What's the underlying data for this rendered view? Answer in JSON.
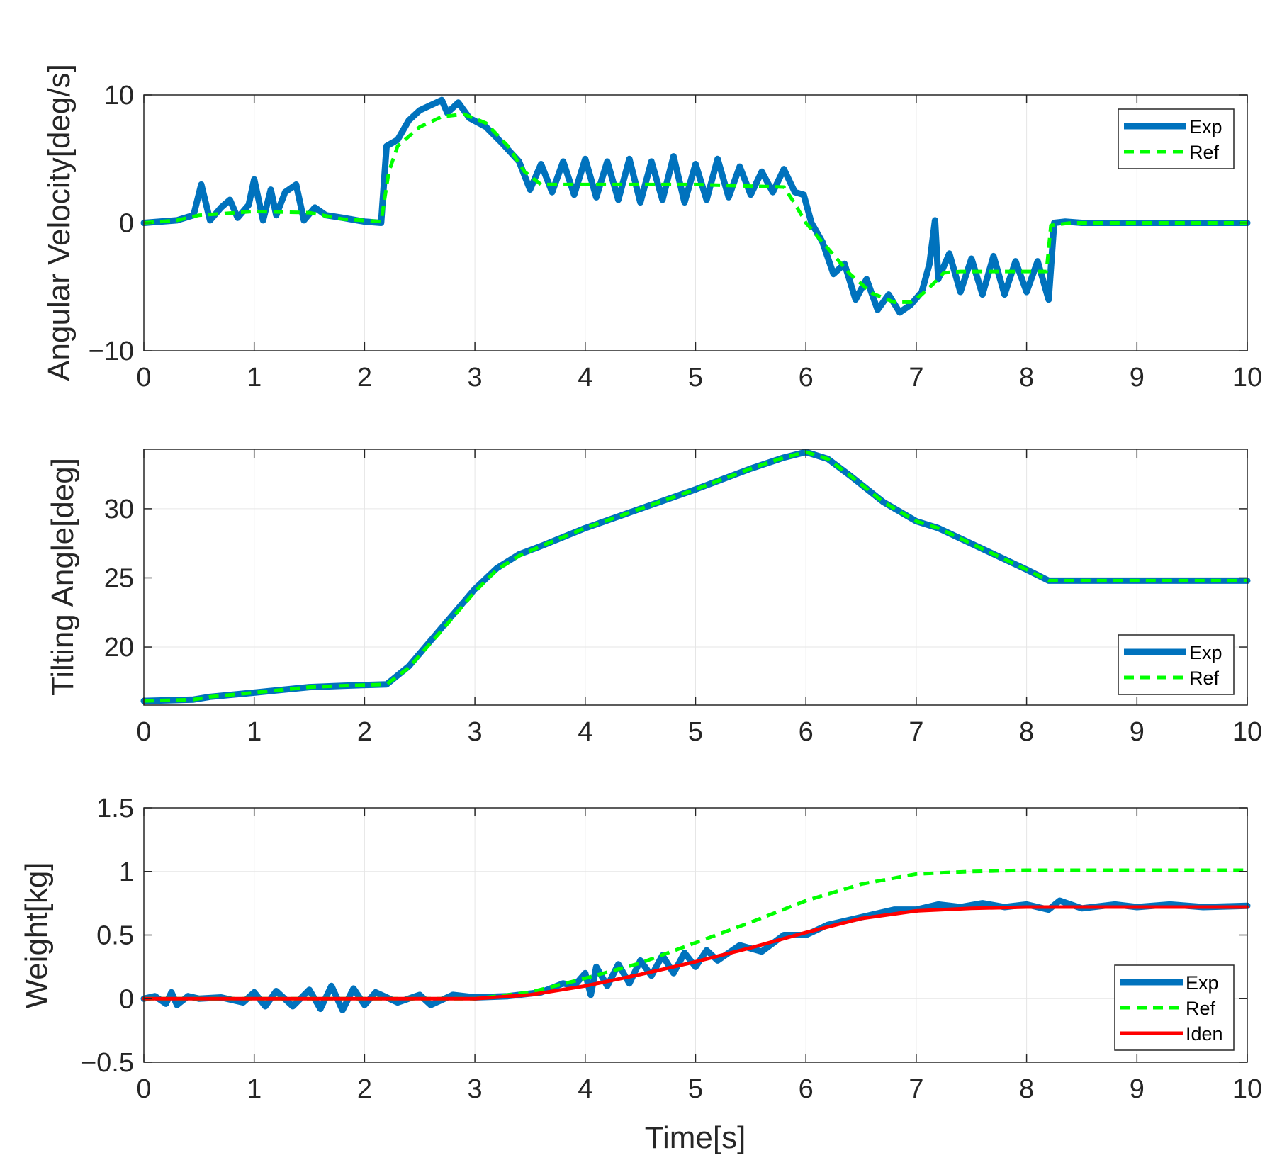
{
  "colors": {
    "exp": "#0072BD",
    "ref": "#00FF00",
    "iden": "#FF0000",
    "axis": "#262626",
    "grid": "#E6E6E6"
  },
  "chart_data": [
    {
      "type": "line",
      "title": "",
      "xlabel": "",
      "ylabel": "Angular Velocity[deg/s]",
      "xlim": [
        0,
        10
      ],
      "ylim": [
        -10,
        10
      ],
      "xticks": [
        0,
        1,
        2,
        3,
        4,
        5,
        6,
        7,
        8,
        9,
        10
      ],
      "yticks": [
        -10,
        0,
        10
      ],
      "ytick_labels": [
        "−10",
        "0",
        "10"
      ],
      "grid": true,
      "legend_position": "top-right",
      "series": [
        {
          "name": "Exp",
          "style": "solid-thick",
          "color": "#0072BD",
          "x": [
            0,
            0.3,
            0.45,
            0.52,
            0.6,
            0.7,
            0.78,
            0.85,
            0.95,
            1.0,
            1.08,
            1.15,
            1.2,
            1.28,
            1.38,
            1.45,
            1.55,
            1.65,
            1.8,
            2.0,
            2.15,
            2.2,
            2.3,
            2.4,
            2.5,
            2.6,
            2.7,
            2.75,
            2.85,
            2.95,
            3.1,
            3.25,
            3.4,
            3.5,
            3.6,
            3.7,
            3.8,
            3.9,
            4.0,
            4.1,
            4.2,
            4.3,
            4.4,
            4.5,
            4.6,
            4.7,
            4.8,
            4.9,
            5.0,
            5.1,
            5.2,
            5.3,
            5.4,
            5.5,
            5.6,
            5.7,
            5.8,
            5.9,
            5.98,
            6.05,
            6.15,
            6.25,
            6.35,
            6.45,
            6.55,
            6.65,
            6.75,
            6.85,
            6.95,
            7.05,
            7.12,
            7.17,
            7.2,
            7.3,
            7.4,
            7.5,
            7.6,
            7.7,
            7.8,
            7.9,
            8.0,
            8.1,
            8.2,
            8.25,
            8.35,
            8.5,
            9.0,
            10.0
          ],
          "y": [
            0,
            0.2,
            0.6,
            3.0,
            0.2,
            1.2,
            1.8,
            0.4,
            1.4,
            3.4,
            0.2,
            2.6,
            0.6,
            2.4,
            3.0,
            0.2,
            1.2,
            0.6,
            0.4,
            0.1,
            0.0,
            6.0,
            6.5,
            8.0,
            8.8,
            9.2,
            9.6,
            8.6,
            9.4,
            8.2,
            7.5,
            6.2,
            4.8,
            2.6,
            4.6,
            2.4,
            4.8,
            2.2,
            5.0,
            2.0,
            4.8,
            1.8,
            5.0,
            1.6,
            4.8,
            1.8,
            5.2,
            1.6,
            4.6,
            1.8,
            5.0,
            2.0,
            4.4,
            2.2,
            4.0,
            2.4,
            4.2,
            2.4,
            2.2,
            0.0,
            -1.5,
            -4.0,
            -3.2,
            -6.0,
            -4.4,
            -6.8,
            -5.6,
            -7.0,
            -6.4,
            -5.4,
            -3.2,
            0.2,
            -4.4,
            -2.4,
            -5.4,
            -2.8,
            -5.6,
            -2.6,
            -5.6,
            -3.0,
            -5.4,
            -3.0,
            -6.0,
            0.0,
            0.1,
            0.0,
            0.0,
            0.0
          ]
        },
        {
          "name": "Ref",
          "style": "dashed",
          "color": "#00FF00",
          "x": [
            0,
            0.3,
            0.5,
            1.0,
            1.5,
            1.8,
            2.15,
            2.22,
            2.3,
            2.5,
            2.7,
            2.9,
            3.1,
            3.3,
            3.45,
            3.6,
            4.0,
            5.0,
            5.8,
            5.9,
            6.0,
            6.2,
            6.4,
            6.6,
            6.8,
            6.95,
            7.05,
            7.15,
            7.25,
            7.4,
            8.0,
            8.18,
            8.22,
            8.4,
            10.0
          ],
          "y": [
            0,
            0.2,
            0.6,
            0.9,
            0.8,
            0.3,
            0.1,
            4.0,
            6.0,
            7.5,
            8.3,
            8.5,
            7.8,
            6.0,
            4.0,
            3.0,
            3.0,
            3.0,
            2.8,
            1.5,
            0.0,
            -2.0,
            -4.0,
            -5.5,
            -6.2,
            -6.2,
            -5.6,
            -4.8,
            -3.9,
            -3.8,
            -3.8,
            -3.8,
            -0.2,
            0.0,
            0.0
          ]
        }
      ]
    },
    {
      "type": "line",
      "title": "",
      "xlabel": "",
      "ylabel": "Tilting Angle[deg]",
      "xlim": [
        0,
        10
      ],
      "ylim": [
        15.8,
        34.3
      ],
      "xticks": [
        0,
        1,
        2,
        3,
        4,
        5,
        6,
        7,
        8,
        9,
        10
      ],
      "yticks": [
        20,
        25,
        30
      ],
      "ytick_labels": [
        "20",
        "25",
        "30"
      ],
      "grid": true,
      "legend_position": "bottom-right",
      "series": [
        {
          "name": "Exp",
          "style": "solid-thick",
          "color": "#0072BD",
          "x": [
            0,
            0.45,
            0.6,
            1.0,
            1.5,
            1.8,
            2.2,
            2.4,
            2.7,
            3.0,
            3.2,
            3.4,
            3.6,
            4.0,
            4.5,
            5.0,
            5.5,
            5.8,
            6.0,
            6.2,
            6.4,
            6.7,
            7.0,
            7.2,
            7.6,
            8.0,
            8.2,
            10.0
          ],
          "y": [
            16.1,
            16.2,
            16.4,
            16.7,
            17.1,
            17.2,
            17.3,
            18.6,
            21.4,
            24.2,
            25.7,
            26.7,
            27.3,
            28.6,
            30.0,
            31.4,
            32.9,
            33.7,
            34.1,
            33.6,
            32.4,
            30.5,
            29.1,
            28.6,
            27.1,
            25.6,
            24.8,
            24.8
          ]
        },
        {
          "name": "Ref",
          "style": "dashed",
          "color": "#00FF00",
          "x": [
            0,
            0.45,
            0.6,
            1.0,
            1.5,
            1.8,
            2.2,
            2.4,
            2.7,
            3.0,
            3.2,
            3.4,
            3.6,
            4.0,
            4.5,
            5.0,
            5.5,
            5.8,
            6.0,
            6.2,
            6.4,
            6.7,
            7.0,
            7.2,
            7.6,
            8.0,
            8.2,
            10.0
          ],
          "y": [
            16.1,
            16.2,
            16.4,
            16.7,
            17.1,
            17.2,
            17.3,
            18.5,
            21.2,
            24.0,
            25.6,
            26.6,
            27.3,
            28.6,
            30.0,
            31.4,
            32.9,
            33.7,
            34.1,
            33.6,
            32.4,
            30.5,
            29.1,
            28.6,
            27.1,
            25.6,
            24.8,
            24.8
          ]
        }
      ]
    },
    {
      "type": "line",
      "title": "",
      "xlabel": "Time[s]",
      "ylabel": "Weight[kg]",
      "xlim": [
        0,
        10
      ],
      "ylim": [
        -0.5,
        1.5
      ],
      "xticks": [
        0,
        1,
        2,
        3,
        4,
        5,
        6,
        7,
        8,
        9,
        10
      ],
      "yticks": [
        -0.5,
        0,
        0.5,
        1,
        1.5
      ],
      "ytick_labels": [
        "−0.5",
        "0",
        "0.5",
        "1",
        "1.5"
      ],
      "grid": true,
      "legend_position": "bottom-right",
      "series": [
        {
          "name": "Exp",
          "style": "solid-thick",
          "color": "#0072BD",
          "x": [
            0,
            0.1,
            0.2,
            0.25,
            0.3,
            0.4,
            0.5,
            0.7,
            0.9,
            1.0,
            1.1,
            1.2,
            1.35,
            1.5,
            1.6,
            1.7,
            1.8,
            1.9,
            2.0,
            2.1,
            2.3,
            2.5,
            2.6,
            2.8,
            3.0,
            3.3,
            3.6,
            3.8,
            3.9,
            4.0,
            4.05,
            4.1,
            4.2,
            4.3,
            4.4,
            4.5,
            4.6,
            4.7,
            4.8,
            4.9,
            5.0,
            5.1,
            5.2,
            5.4,
            5.6,
            5.8,
            6.0,
            6.2,
            6.4,
            6.6,
            6.8,
            7.0,
            7.2,
            7.4,
            7.6,
            7.8,
            8.0,
            8.2,
            8.3,
            8.5,
            8.8,
            9.0,
            9.3,
            9.6,
            10.0
          ],
          "y": [
            0.0,
            0.02,
            -0.04,
            0.05,
            -0.05,
            0.02,
            0.0,
            0.01,
            -0.03,
            0.05,
            -0.06,
            0.06,
            -0.06,
            0.07,
            -0.08,
            0.1,
            -0.09,
            0.08,
            -0.05,
            0.05,
            -0.03,
            0.03,
            -0.05,
            0.03,
            0.01,
            0.02,
            0.05,
            0.12,
            0.1,
            0.2,
            0.03,
            0.25,
            0.1,
            0.27,
            0.12,
            0.3,
            0.18,
            0.34,
            0.2,
            0.36,
            0.25,
            0.38,
            0.3,
            0.42,
            0.37,
            0.5,
            0.5,
            0.58,
            0.62,
            0.66,
            0.7,
            0.7,
            0.74,
            0.72,
            0.75,
            0.72,
            0.74,
            0.7,
            0.77,
            0.71,
            0.74,
            0.72,
            0.74,
            0.72,
            0.73
          ]
        },
        {
          "name": "Ref",
          "style": "dashed",
          "color": "#00FF00",
          "x": [
            0,
            3.0,
            3.5,
            4.0,
            4.5,
            5.0,
            5.5,
            6.0,
            6.5,
            7.0,
            7.5,
            8.0,
            9.0,
            10.0
          ],
          "y": [
            0,
            0,
            0.05,
            0.16,
            0.28,
            0.44,
            0.6,
            0.77,
            0.9,
            0.98,
            1.0,
            1.01,
            1.01,
            1.01
          ]
        },
        {
          "name": "Iden",
          "style": "solid",
          "color": "#FF0000",
          "x": [
            0,
            3.0,
            3.5,
            4.0,
            4.5,
            5.0,
            5.5,
            6.0,
            6.5,
            7.0,
            7.5,
            8.0,
            9.0,
            10.0
          ],
          "y": [
            0,
            0,
            0.03,
            0.1,
            0.19,
            0.29,
            0.4,
            0.52,
            0.63,
            0.69,
            0.71,
            0.72,
            0.72,
            0.72
          ]
        }
      ]
    }
  ]
}
